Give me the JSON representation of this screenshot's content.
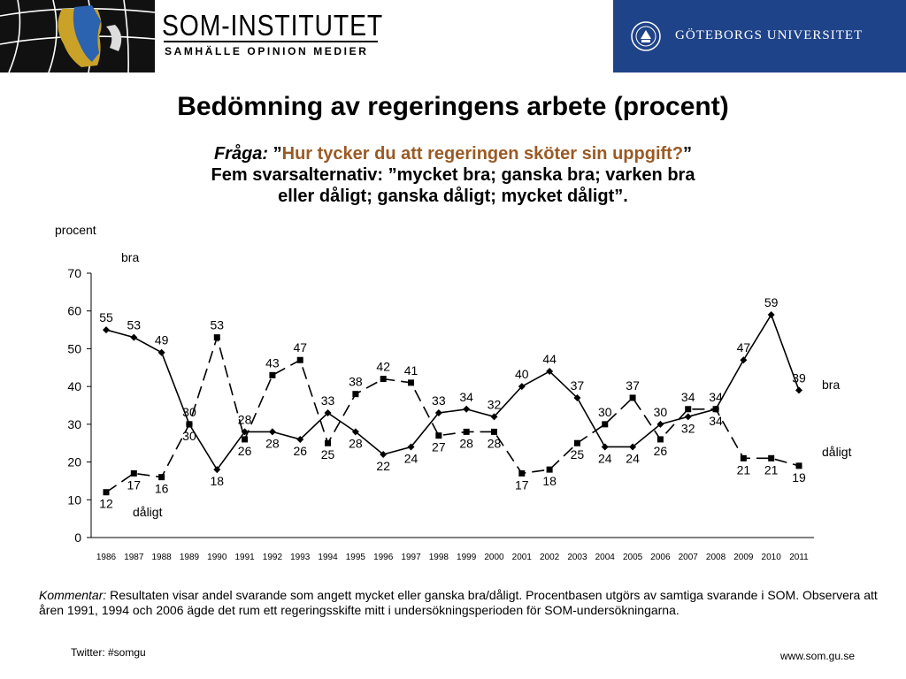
{
  "header": {
    "brand_title": "SOM-INSTITUTET",
    "brand_subtitle": "SAMHÄLLE OPINION MEDIER",
    "university_name": "GÖTEBORGS UNIVERSITET",
    "university_bg_color": "#1f4388",
    "map_icon": "sweden-map-icon",
    "seal_icon": "university-seal-icon"
  },
  "title": "Bedömning av regeringens arbete (procent)",
  "question": {
    "label": "Fråga:",
    "open_quote": " ”",
    "text": "Hur tycker du att regeringen sköter sin uppgift?",
    "close_quote": "”",
    "line2": "Fem svarsalternativ: ”mycket bra; ganska bra; varken bra",
    "line3": "eller dåligt; ganska dåligt; mycket dåligt”.",
    "highlight_color": "#9a5a24"
  },
  "chart_data": {
    "type": "line",
    "ylabel": "procent",
    "ylim": [
      0,
      70
    ],
    "yticks": [
      0,
      10,
      20,
      30,
      40,
      50,
      60,
      70
    ],
    "grid": false,
    "categories": [
      "1986",
      "1987",
      "1988",
      "1989",
      "1990",
      "1991",
      "1992",
      "1993",
      "1994",
      "1995",
      "1996",
      "1997",
      "1998",
      "1999",
      "2000",
      "2001",
      "2002",
      "2003",
      "2004",
      "2005",
      "2006",
      "2007",
      "2008",
      "2009",
      "2010",
      "2011"
    ],
    "series": [
      {
        "name": "bra",
        "style": "solid",
        "marker": "diamond",
        "values": [
          55,
          53,
          49,
          30,
          18,
          28,
          28,
          26,
          33,
          28,
          22,
          24,
          33,
          34,
          32,
          40,
          44,
          37,
          24,
          24,
          30,
          32,
          34,
          47,
          59,
          39
        ],
        "start_label": "bra",
        "end_label": "bra"
      },
      {
        "name": "dåligt",
        "style": "dashed",
        "marker": "square",
        "values": [
          12,
          17,
          16,
          30,
          53,
          26,
          43,
          47,
          25,
          38,
          42,
          41,
          27,
          28,
          28,
          17,
          18,
          25,
          30,
          37,
          26,
          34,
          34,
          21,
          21,
          19
        ],
        "start_label": "dåligt",
        "end_label": "dåligt"
      }
    ]
  },
  "comment": {
    "label": "Kommentar:",
    "text": " Resultaten visar andel svarande som angett mycket eller ganska bra/dåligt. Procentbasen utgörs av samtiga svarande i SOM. Observera att åren 1991, 1994 och 2006 ägde det rum ett regeringsskifte mitt i undersökningsperioden för SOM-undersökningarna."
  },
  "footer": {
    "twitter": "Twitter: #somgu",
    "website": "www.som.gu.se"
  }
}
